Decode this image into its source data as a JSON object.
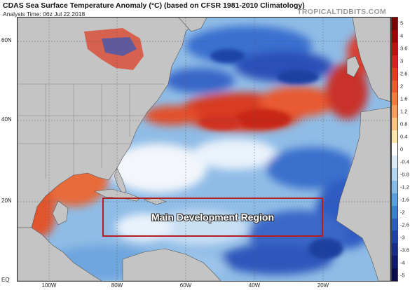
{
  "header": {
    "title": "CDAS Sea Surface Temperature Anomaly (°C) (based on CFSR 1981-2010 Climatology)",
    "analysis_time": "Analysis Time: 06z Jul 22 2018",
    "brand": "TROPICALTIDBITS.COM"
  },
  "axes": {
    "lat_labels": [
      "60N",
      "40N",
      "20N",
      "EQ"
    ],
    "lon_labels": [
      "100W",
      "80W",
      "60W",
      "40W",
      "20W"
    ]
  },
  "colorbar": {
    "ticks": [
      "5",
      "4",
      "3.6",
      "3",
      "2.6",
      "2",
      "1.6",
      "1.2",
      "0.8",
      "0.4",
      "0",
      "-0.4",
      "-0.8",
      "-1.2",
      "-1.6",
      "-2",
      "-2.6",
      "-3",
      "-3.6",
      "-4",
      "-5"
    ],
    "colors": [
      "#7a0000",
      "#a00000",
      "#c01010",
      "#d82020",
      "#e83a1e",
      "#f05a28",
      "#f77b3a",
      "#fb9e5a",
      "#fdc27e",
      "#fde7a8",
      "#ffffff",
      "#dcecf8",
      "#b4d6f0",
      "#86bde7",
      "#5aa0dc",
      "#3b80d0",
      "#2a60c0",
      "#1e42a8",
      "#182c8c",
      "#121a70",
      "#0a0a50"
    ]
  },
  "region_box": {
    "label": "Main Development Region",
    "border_color": "#b01e1e"
  },
  "colors": {
    "land": "#bdbdbd",
    "ocean_base": "#7fb0e0",
    "warm_anomaly": "#e0402a",
    "cold_anomaly": "#2a5fc4"
  }
}
